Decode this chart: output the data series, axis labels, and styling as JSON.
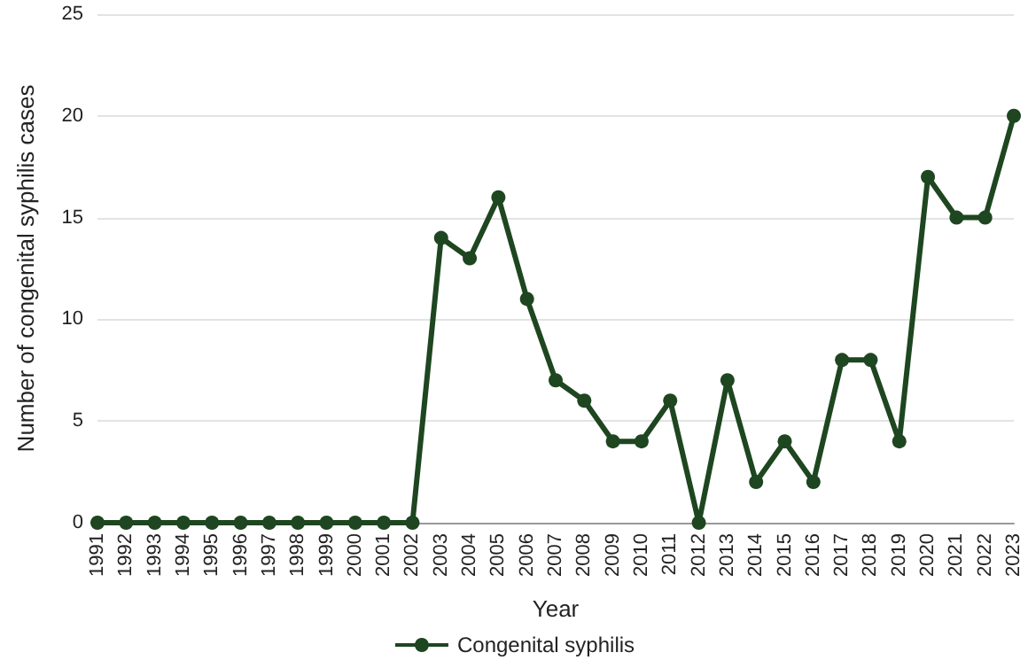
{
  "chart_data": {
    "type": "line",
    "xlabel": "Year",
    "ylabel": "Number of congenital syphilis cases",
    "categories": [
      "1991",
      "1992",
      "1993",
      "1994",
      "1995",
      "1996",
      "1997",
      "1998",
      "1999",
      "2000",
      "2001",
      "2002",
      "2003",
      "2004",
      "2005",
      "2006",
      "2007",
      "2008",
      "2009",
      "2010",
      "2011",
      "2012",
      "2013",
      "2014",
      "2015",
      "2016",
      "2017",
      "2018",
      "2019",
      "2020",
      "2021",
      "2022",
      "2023"
    ],
    "series": [
      {
        "name": "Congenital syphilis",
        "color": "#1e4620",
        "values": [
          0,
          0,
          0,
          0,
          0,
          0,
          0,
          0,
          0,
          0,
          0,
          0,
          14,
          13,
          16,
          11,
          7,
          6,
          4,
          4,
          6,
          0,
          7,
          2,
          4,
          2,
          8,
          8,
          4,
          17,
          15,
          15,
          20
        ]
      }
    ],
    "ylim": [
      0,
      25
    ],
    "yticks": [
      0,
      5,
      10,
      15,
      20,
      25
    ],
    "grid": "y",
    "legend": "bottom",
    "marker": "circle",
    "line_style": "solid"
  }
}
